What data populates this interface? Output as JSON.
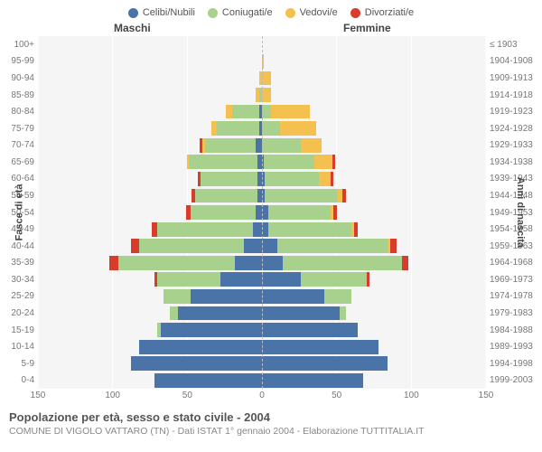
{
  "legend": [
    {
      "label": "Celibi/Nubili",
      "color": "#4a74a8"
    },
    {
      "label": "Coniugati/e",
      "color": "#a9d18e"
    },
    {
      "label": "Vedovi/e",
      "color": "#f4c04f"
    },
    {
      "label": "Divorziati/e",
      "color": "#d73c2c"
    }
  ],
  "gender_m": "Maschi",
  "gender_f": "Femmine",
  "ylabel_left": "Fasce di età",
  "ylabel_right": "Anni di nascita",
  "xlim_max": 150,
  "xticks_left": [
    150,
    100,
    50,
    0
  ],
  "xticks_right": [
    50,
    100,
    150
  ],
  "age_groups": [
    "100+",
    "95-99",
    "90-94",
    "85-89",
    "80-84",
    "75-79",
    "70-74",
    "65-69",
    "60-64",
    "55-59",
    "50-54",
    "45-49",
    "40-44",
    "35-39",
    "30-34",
    "25-29",
    "20-24",
    "15-19",
    "10-14",
    "5-9",
    "0-4"
  ],
  "birth_years": [
    "≤ 1903",
    "1904-1908",
    "1909-1913",
    "1914-1918",
    "1919-1923",
    "1924-1928",
    "1929-1933",
    "1934-1938",
    "1939-1943",
    "1944-1948",
    "1949-1953",
    "1954-1958",
    "1959-1963",
    "1964-1968",
    "1969-1973",
    "1974-1978",
    "1979-1983",
    "1984-1988",
    "1989-1993",
    "1994-1998",
    "1999-2003"
  ],
  "data": {
    "m": [
      [
        0,
        0,
        0,
        0
      ],
      [
        0,
        0,
        0,
        0
      ],
      [
        0,
        0,
        2,
        0
      ],
      [
        0,
        2,
        2,
        0
      ],
      [
        2,
        18,
        4,
        0
      ],
      [
        2,
        28,
        4,
        0
      ],
      [
        4,
        34,
        2,
        2
      ],
      [
        3,
        46,
        1,
        0
      ],
      [
        3,
        38,
        0,
        2
      ],
      [
        3,
        42,
        0,
        2
      ],
      [
        4,
        44,
        0,
        3
      ],
      [
        6,
        64,
        0,
        4
      ],
      [
        12,
        70,
        0,
        6
      ],
      [
        18,
        78,
        0,
        6
      ],
      [
        28,
        42,
        0,
        2
      ],
      [
        48,
        18,
        0,
        0
      ],
      [
        56,
        6,
        0,
        0
      ],
      [
        68,
        2,
        0,
        0
      ],
      [
        82,
        0,
        0,
        0
      ],
      [
        88,
        0,
        0,
        0
      ],
      [
        72,
        0,
        0,
        0
      ]
    ],
    "f": [
      [
        0,
        0,
        0,
        0
      ],
      [
        0,
        0,
        1,
        0
      ],
      [
        0,
        0,
        6,
        0
      ],
      [
        0,
        0,
        6,
        0
      ],
      [
        0,
        6,
        26,
        0
      ],
      [
        0,
        12,
        24,
        0
      ],
      [
        0,
        26,
        14,
        0
      ],
      [
        1,
        34,
        12,
        2
      ],
      [
        2,
        36,
        8,
        2
      ],
      [
        2,
        48,
        4,
        2
      ],
      [
        4,
        42,
        2,
        2
      ],
      [
        4,
        56,
        2,
        2
      ],
      [
        10,
        74,
        2,
        4
      ],
      [
        14,
        80,
        0,
        4
      ],
      [
        26,
        44,
        0,
        2
      ],
      [
        42,
        18,
        0,
        0
      ],
      [
        52,
        4,
        0,
        0
      ],
      [
        64,
        0,
        0,
        0
      ],
      [
        78,
        0,
        0,
        0
      ],
      [
        84,
        0,
        0,
        0
      ],
      [
        68,
        0,
        0,
        0
      ]
    ]
  },
  "colors": [
    "#4a74a8",
    "#a9d18e",
    "#f4c04f",
    "#d73c2c"
  ],
  "bg_color": "#f5f5f5",
  "title": "Popolazione per età, sesso e stato civile - 2004",
  "subtitle": "COMUNE DI VIGOLO VATTARO (TN) - Dati ISTAT 1° gennaio 2004 - Elaborazione TUTTITALIA.IT"
}
